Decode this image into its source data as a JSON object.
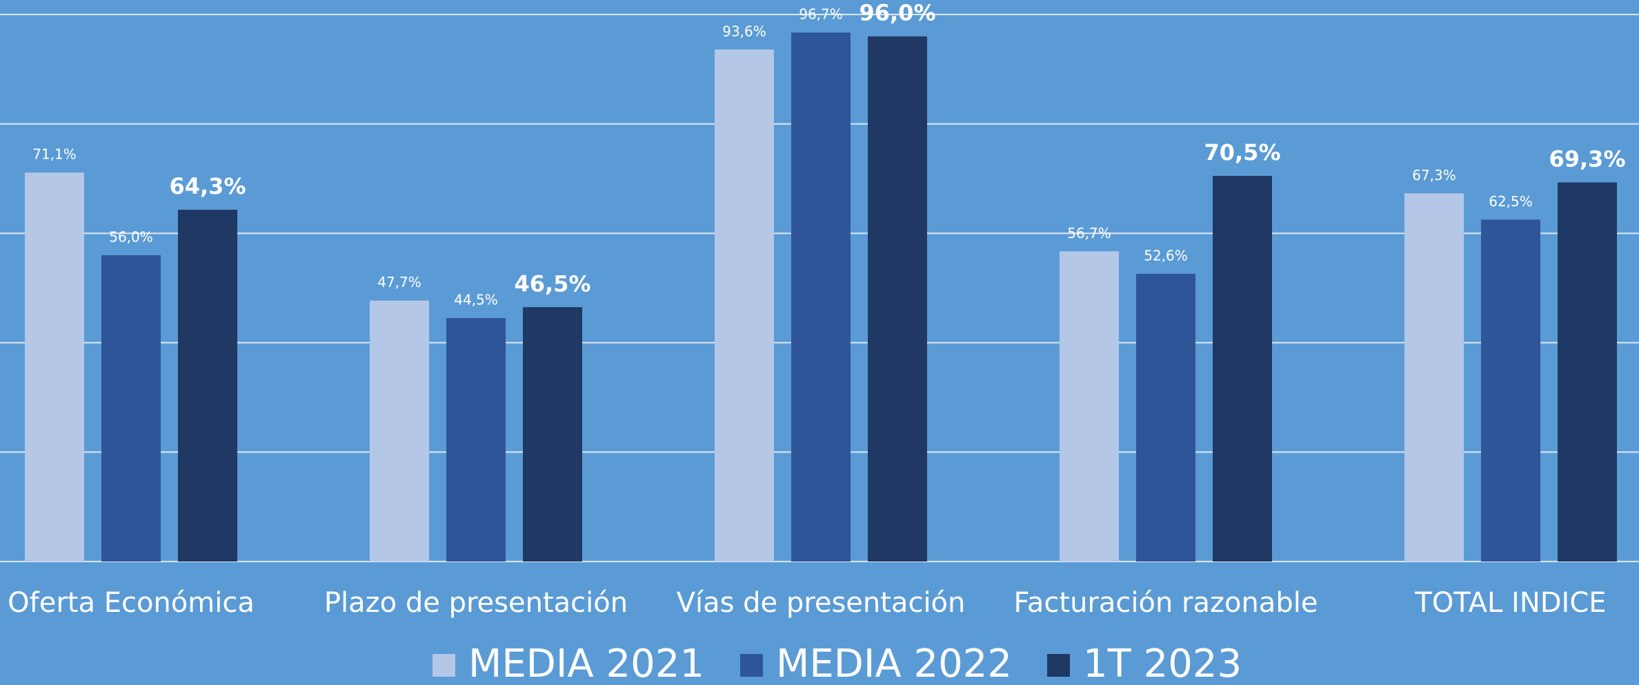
{
  "chart_data": {
    "type": "bar",
    "categories": [
      "Oferta Económica",
      "Plazo de presentación",
      "Vías de presentación",
      "Facturación razonable",
      "TOTAL INDICE"
    ],
    "series": [
      {
        "name": "MEDIA 2021",
        "color": "#b4c7e7",
        "values": [
          71.1,
          47.7,
          93.6,
          56.7,
          67.3
        ],
        "value_labels": [
          "71,1%",
          "47,7%",
          "93,6%",
          "56,7%",
          "67,3%"
        ]
      },
      {
        "name": "MEDIA 2022",
        "color": "#2e5597",
        "values": [
          56.0,
          44.5,
          96.7,
          52.6,
          62.5
        ],
        "value_labels": [
          "56,0%",
          "44,5%",
          "96,7%",
          "52,6%",
          "62,5%"
        ]
      },
      {
        "name": "1T 2023",
        "color": "#1f3864",
        "values": [
          64.3,
          46.5,
          96.0,
          70.5,
          69.3
        ],
        "value_labels": [
          "64,3%",
          "46,5%",
          "96,0%",
          "70,5%",
          "69,3%"
        ]
      }
    ],
    "ylim": [
      0,
      100
    ],
    "yticks": [
      0,
      20,
      40,
      60,
      80,
      100
    ],
    "grid": true,
    "legend": "bottom"
  }
}
